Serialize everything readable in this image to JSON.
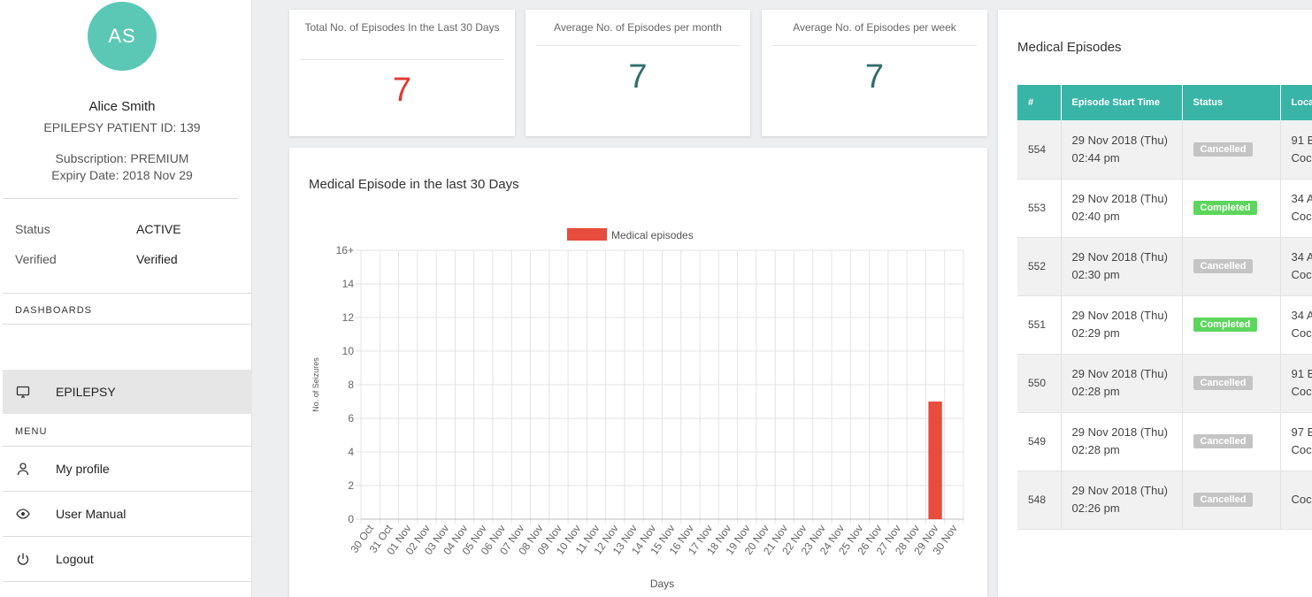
{
  "profile": {
    "initials": "AS",
    "name": "Alice Smith",
    "patient_id": "EPILEPSY PATIENT ID: 139",
    "subscription": "Subscription: PREMIUM",
    "expiry": "Expiry Date: 2018 Nov 29",
    "status_label": "Status",
    "status_value": "ACTIVE",
    "verified_label": "Verified",
    "verified_value": "Verified"
  },
  "sidebar": {
    "dashboards_title": "DASHBOARDS",
    "epilepsy": "EPILEPSY",
    "menu_title": "MENU",
    "my_profile": "My profile",
    "user_manual": "User Manual",
    "logout": "Logout"
  },
  "stats": [
    {
      "title": "Total No. of Episodes In the Last 30 Days",
      "value": "7",
      "color": "#e03a2f"
    },
    {
      "title": "Average No. of Episodes per month",
      "value": "7",
      "color": "#2f6f6a"
    },
    {
      "title": "Average No. of Episodes per week",
      "value": "7",
      "color": "#2f6f6a"
    }
  ],
  "chart_title": "Medical Episode in the last 30 Days",
  "chart_data": {
    "type": "bar",
    "categories": [
      "30 Oct",
      "31 Oct",
      "01 Nov",
      "02 Nov",
      "03 Nov",
      "04 Nov",
      "05 Nov",
      "06 Nov",
      "07 Nov",
      "08 Nov",
      "09 Nov",
      "10 Nov",
      "11 Nov",
      "12 Nov",
      "13 Nov",
      "14 Nov",
      "15 Nov",
      "16 Nov",
      "17 Nov",
      "18 Nov",
      "19 Nov",
      "20 Nov",
      "21 Nov",
      "22 Nov",
      "23 Nov",
      "24 Nov",
      "25 Nov",
      "26 Nov",
      "27 Nov",
      "28 Nov",
      "29 Nov",
      "30 Nov"
    ],
    "series": [
      {
        "name": "Medical episodes",
        "values": [
          0,
          0,
          0,
          0,
          0,
          0,
          0,
          0,
          0,
          0,
          0,
          0,
          0,
          0,
          0,
          0,
          0,
          0,
          0,
          0,
          0,
          0,
          0,
          0,
          0,
          0,
          0,
          0,
          0,
          0,
          7,
          0
        ],
        "color": "#e74c3c"
      }
    ],
    "xlabel": "Days",
    "ylabel": "No. of Seizures",
    "ylim": [
      0,
      16
    ],
    "yticks": [
      "0",
      "2",
      "4",
      "6",
      "8",
      "10",
      "12",
      "14",
      "16+"
    ],
    "grid": true,
    "legend": "top-center"
  },
  "episodes": {
    "title": "Medical Episodes",
    "headers": [
      "#",
      "Episode Start Time",
      "Status",
      "Loca"
    ],
    "rows": [
      {
        "id": "554",
        "date": "29 Nov 2018 (Thu)",
        "time": "02:44 pm",
        "status": "Cancelled",
        "loc1": "91 B",
        "loc2": "Coc"
      },
      {
        "id": "553",
        "date": "29 Nov 2018 (Thu)",
        "time": "02:40 pm",
        "status": "Completed",
        "loc1": "34 A",
        "loc2": "Coc"
      },
      {
        "id": "552",
        "date": "29 Nov 2018 (Thu)",
        "time": "02:30 pm",
        "status": "Cancelled",
        "loc1": "34 A",
        "loc2": "Coc"
      },
      {
        "id": "551",
        "date": "29 Nov 2018 (Thu)",
        "time": "02:29 pm",
        "status": "Completed",
        "loc1": "34 A",
        "loc2": "Coc"
      },
      {
        "id": "550",
        "date": "29 Nov 2018 (Thu)",
        "time": "02:28 pm",
        "status": "Cancelled",
        "loc1": "91 B",
        "loc2": "Coc"
      },
      {
        "id": "549",
        "date": "29 Nov 2018 (Thu)",
        "time": "02:28 pm",
        "status": "Cancelled",
        "loc1": "97 B",
        "loc2": "Coc"
      },
      {
        "id": "548",
        "date": "29 Nov 2018 (Thu)",
        "time": "02:26 pm",
        "status": "Cancelled",
        "loc1": "",
        "loc2": "Coc"
      }
    ],
    "status_colors": {
      "Cancelled": "#c4c4c4",
      "Completed": "#5cd65c"
    }
  }
}
